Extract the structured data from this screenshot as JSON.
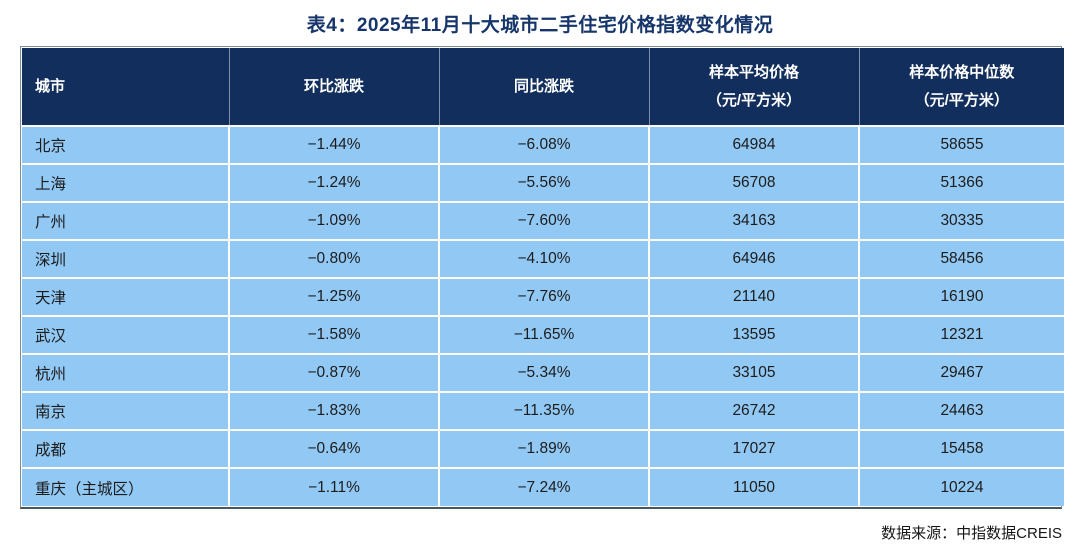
{
  "title": "表4：2025年11月十大城市二手住宅价格指数变化情况",
  "source": "数据来源：中指数据CREIS",
  "colors": {
    "header_bg": "#112e5c",
    "row_bg": "#92c8f4",
    "title_color": "#16356a",
    "header_text": "#ffffff",
    "body_text": "#1c1c1c",
    "grid_line": "#fdfdfd",
    "outer_border": "#7d8b9a"
  },
  "chart_data": {
    "type": "table",
    "title": "表4：2025年11月十大城市二手住宅价格指数变化情况",
    "columns": [
      "城市",
      "环比涨跌",
      "同比涨跌",
      "样本平均价格\n（元/平方米）",
      "样本价格中位数\n（元/平方米）"
    ],
    "rows": [
      [
        "北京",
        "−1.44%",
        "−6.08%",
        "64984",
        "58655"
      ],
      [
        "上海",
        "−1.24%",
        "−5.56%",
        "56708",
        "51366"
      ],
      [
        "广州",
        "−1.09%",
        "−7.60%",
        "34163",
        "30335"
      ],
      [
        "深圳",
        "−0.80%",
        "−4.10%",
        "64946",
        "58456"
      ],
      [
        "天津",
        "−1.25%",
        "−7.76%",
        "21140",
        "16190"
      ],
      [
        "武汉",
        "−1.58%",
        "−11.65%",
        "13595",
        "12321"
      ],
      [
        "杭州",
        "−0.87%",
        "−5.34%",
        "33105",
        "29467"
      ],
      [
        "南京",
        "−1.83%",
        "−11.35%",
        "26742",
        "24463"
      ],
      [
        "成都",
        "−0.64%",
        "−1.89%",
        "17027",
        "15458"
      ],
      [
        "重庆（主城区）",
        "−1.11%",
        "−7.24%",
        "11050",
        "10224"
      ]
    ],
    "source": "数据来源：中指数据CREIS"
  }
}
